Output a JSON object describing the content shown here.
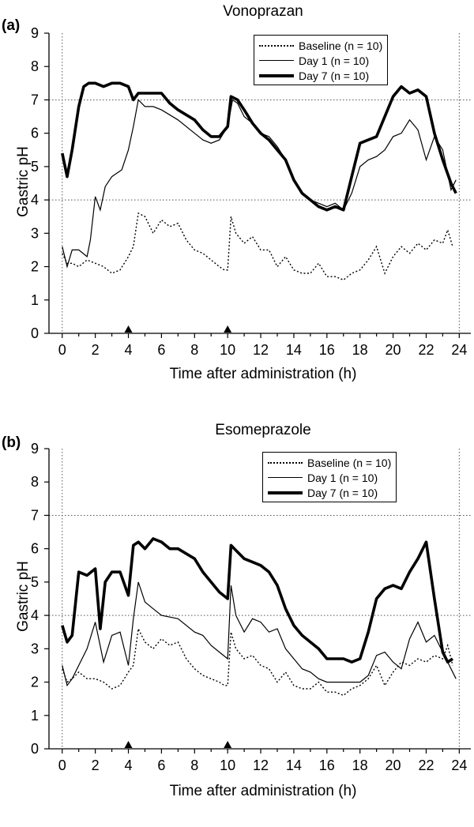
{
  "chart_data": [
    {
      "type": "line",
      "panel_label": "(a)",
      "title": "Vonoprazan",
      "xlabel": "Time after administration (h)",
      "ylabel": "Gastric pH",
      "xlim": [
        -0.8,
        24.7
      ],
      "ylim": [
        0,
        9
      ],
      "x_ticks": [
        0,
        2,
        4,
        6,
        8,
        10,
        12,
        14,
        16,
        18,
        20,
        22,
        24
      ],
      "y_ticks": [
        0,
        1,
        2,
        3,
        4,
        5,
        6,
        7,
        8,
        9
      ],
      "reference_lines_y": [
        4,
        7
      ],
      "reference_lines_x": [
        0,
        24
      ],
      "dosing_markers_x": [
        4,
        10
      ],
      "legend_position": "top-right",
      "series": [
        {
          "name": "Baseline (n = 10)",
          "style": "dotted",
          "x": [
            0,
            0.3,
            0.6,
            1,
            1.5,
            2,
            2.5,
            3,
            3.5,
            4,
            4.3,
            4.6,
            5,
            5.5,
            6,
            6.5,
            7,
            7.5,
            8,
            8.5,
            9,
            9.5,
            9.8,
            10,
            10.2,
            10.5,
            11,
            11.5,
            12,
            12.5,
            13,
            13.5,
            14,
            14.5,
            15,
            15.5,
            16,
            16.5,
            17,
            17.5,
            18,
            18.5,
            19,
            19.5,
            20,
            20.5,
            21,
            21.5,
            22,
            22.5,
            23,
            23.3,
            23.6
          ],
          "y": [
            2.4,
            2.1,
            2.1,
            2.0,
            2.2,
            2.1,
            2.0,
            1.8,
            1.9,
            2.3,
            2.6,
            3.6,
            3.5,
            3.0,
            3.4,
            3.2,
            3.3,
            2.8,
            2.5,
            2.4,
            2.2,
            2.0,
            1.9,
            1.9,
            3.5,
            3.0,
            2.7,
            2.9,
            2.5,
            2.5,
            2.0,
            2.3,
            1.9,
            1.8,
            1.8,
            2.1,
            1.7,
            1.7,
            1.6,
            1.8,
            1.9,
            2.2,
            2.6,
            1.8,
            2.3,
            2.6,
            2.4,
            2.7,
            2.5,
            2.8,
            2.7,
            3.1,
            2.6
          ]
        },
        {
          "name": "Day 1 (n = 10)",
          "style": "thin",
          "x": [
            0,
            0.3,
            0.6,
            1,
            1.5,
            1.7,
            2,
            2.3,
            2.6,
            3,
            3.3,
            3.6,
            4,
            4.3,
            4.6,
            5,
            5.5,
            6,
            7,
            8,
            8.5,
            9,
            9.5,
            10,
            10.3,
            10.6,
            11,
            11.5,
            12,
            12.5,
            13,
            13.5,
            14,
            14.5,
            15,
            15.5,
            16,
            16.5,
            17,
            17.5,
            18,
            18.5,
            19,
            19.5,
            20,
            20.5,
            21,
            21.5,
            22,
            22.5,
            23,
            23.5,
            23.8
          ],
          "y": [
            2.6,
            2.0,
            2.5,
            2.5,
            2.3,
            2.8,
            4.1,
            3.7,
            4.4,
            4.7,
            4.8,
            4.9,
            5.5,
            6.2,
            7.0,
            6.8,
            6.8,
            6.7,
            6.4,
            6.0,
            5.8,
            5.7,
            5.8,
            6.2,
            7.0,
            6.9,
            6.5,
            6.3,
            6.0,
            5.9,
            5.6,
            5.2,
            4.6,
            4.2,
            4.0,
            3.9,
            3.8,
            3.9,
            3.7,
            4.2,
            5.0,
            5.2,
            5.3,
            5.5,
            5.9,
            6.0,
            6.4,
            6.1,
            5.2,
            5.9,
            5.5,
            4.3,
            4.6
          ]
        },
        {
          "name": "Day 7 (n = 10)",
          "style": "thick",
          "x": [
            0,
            0.3,
            0.6,
            1,
            1.3,
            1.6,
            2,
            2.5,
            3,
            3.5,
            4,
            4.3,
            4.6,
            5,
            6,
            6.5,
            7,
            8,
            8.5,
            9,
            9.5,
            10,
            10.2,
            10.6,
            11,
            11.5,
            12,
            12.5,
            13,
            13.5,
            14,
            14.5,
            15,
            15.5,
            16,
            16.5,
            17,
            17.5,
            18,
            18.5,
            19,
            19.5,
            20,
            20.5,
            21,
            21.5,
            22,
            22.5,
            23,
            23.5,
            23.8
          ],
          "y": [
            5.4,
            4.7,
            5.5,
            6.8,
            7.4,
            7.5,
            7.5,
            7.4,
            7.5,
            7.5,
            7.4,
            7.0,
            7.2,
            7.2,
            7.2,
            6.9,
            6.7,
            6.4,
            6.1,
            5.9,
            5.9,
            6.2,
            7.1,
            7.0,
            6.7,
            6.3,
            6.0,
            5.8,
            5.5,
            5.2,
            4.6,
            4.2,
            4.0,
            3.8,
            3.7,
            3.8,
            3.7,
            4.7,
            5.7,
            5.8,
            5.9,
            6.5,
            7.1,
            7.4,
            7.2,
            7.3,
            7.1,
            6.0,
            5.2,
            4.5,
            4.2
          ]
        }
      ]
    },
    {
      "type": "line",
      "panel_label": "(b)",
      "title": "Esomeprazole",
      "xlabel": "Time after administration (h)",
      "ylabel": "Gastric pH",
      "xlim": [
        -0.8,
        24.7
      ],
      "ylim": [
        0,
        9
      ],
      "x_ticks": [
        0,
        2,
        4,
        6,
        8,
        10,
        12,
        14,
        16,
        18,
        20,
        22,
        24
      ],
      "y_ticks": [
        0,
        1,
        2,
        3,
        4,
        5,
        6,
        7,
        8,
        9
      ],
      "reference_lines_y": [
        4,
        7
      ],
      "reference_lines_x": [
        0,
        24
      ],
      "dosing_markers_x": [
        4,
        10
      ],
      "legend_position": "top-right",
      "series": [
        {
          "name": "Baseline (n = 10)",
          "style": "dotted",
          "x": [
            0,
            0.3,
            0.6,
            1,
            1.5,
            2,
            2.5,
            3,
            3.5,
            4,
            4.3,
            4.6,
            5,
            5.5,
            6,
            6.5,
            7,
            7.5,
            8,
            8.5,
            9,
            9.5,
            9.8,
            10,
            10.2,
            10.5,
            11,
            11.5,
            12,
            12.5,
            13,
            13.5,
            14,
            14.5,
            15,
            15.5,
            16,
            16.5,
            17,
            17.5,
            18,
            18.5,
            19,
            19.5,
            20,
            20.5,
            21,
            21.5,
            22,
            22.5,
            23,
            23.3,
            23.6
          ],
          "y": [
            2.4,
            2.0,
            2.1,
            2.3,
            2.1,
            2.1,
            2.0,
            1.8,
            1.9,
            2.3,
            2.5,
            3.6,
            3.2,
            3.0,
            3.3,
            3.1,
            3.2,
            2.7,
            2.4,
            2.2,
            2.1,
            2.0,
            1.9,
            1.9,
            3.5,
            3.0,
            2.7,
            2.8,
            2.5,
            2.4,
            2.0,
            2.3,
            1.9,
            1.8,
            1.8,
            2.0,
            1.7,
            1.7,
            1.6,
            1.8,
            1.9,
            2.1,
            2.5,
            1.9,
            2.3,
            2.6,
            2.5,
            2.7,
            2.6,
            2.8,
            2.7,
            3.1,
            2.5
          ]
        },
        {
          "name": "Day 1 (n = 10)",
          "style": "thin",
          "x": [
            0,
            0.3,
            0.6,
            1,
            1.5,
            2,
            2.5,
            3,
            3.5,
            4,
            4.3,
            4.6,
            5,
            5.5,
            6,
            7,
            8,
            8.5,
            9,
            9.5,
            10,
            10.2,
            10.5,
            11,
            11.5,
            12,
            12.5,
            13,
            13.5,
            14,
            14.5,
            15,
            15.5,
            16,
            16.5,
            17,
            17.5,
            18,
            18.5,
            19,
            19.5,
            20,
            20.5,
            21,
            21.5,
            22,
            22.5,
            23,
            23.5,
            23.8
          ],
          "y": [
            2.5,
            1.9,
            2.1,
            2.5,
            3.0,
            3.8,
            2.6,
            3.4,
            3.5,
            2.5,
            3.9,
            5.0,
            4.4,
            4.2,
            4.0,
            3.9,
            3.5,
            3.4,
            3.1,
            2.9,
            2.7,
            4.9,
            4.0,
            3.5,
            3.9,
            3.8,
            3.5,
            3.6,
            3.0,
            2.7,
            2.4,
            2.3,
            2.1,
            2.0,
            2.0,
            2.0,
            2.0,
            2.0,
            2.2,
            2.8,
            2.9,
            2.6,
            2.4,
            3.3,
            3.8,
            3.2,
            3.4,
            2.9,
            2.4,
            2.1
          ]
        },
        {
          "name": "Day 7 (n = 10)",
          "style": "thick",
          "x": [
            0,
            0.3,
            0.6,
            1,
            1.5,
            2,
            2.3,
            2.6,
            3,
            3.5,
            4,
            4.3,
            4.6,
            5,
            5.5,
            6,
            6.5,
            7,
            8,
            8.5,
            9,
            9.5,
            10,
            10.2,
            10.6,
            11,
            11.5,
            12,
            12.5,
            13,
            13.5,
            14,
            14.5,
            15,
            15.5,
            16,
            16.5,
            17,
            17.5,
            18,
            18.5,
            19,
            19.5,
            20,
            20.5,
            21,
            21.5,
            22,
            22.5,
            23,
            23.3,
            23.6
          ],
          "y": [
            3.7,
            3.2,
            3.4,
            5.3,
            5.2,
            5.4,
            3.6,
            5.0,
            5.3,
            5.3,
            4.6,
            6.1,
            6.2,
            6.0,
            6.3,
            6.2,
            6.0,
            6.0,
            5.7,
            5.3,
            5.0,
            4.7,
            4.5,
            6.1,
            5.9,
            5.7,
            5.6,
            5.5,
            5.3,
            4.9,
            4.2,
            3.7,
            3.4,
            3.2,
            3.0,
            2.7,
            2.7,
            2.7,
            2.6,
            2.7,
            3.5,
            4.5,
            4.8,
            4.9,
            4.8,
            5.3,
            5.7,
            6.2,
            4.5,
            2.9,
            2.6,
            2.7
          ]
        }
      ]
    }
  ]
}
